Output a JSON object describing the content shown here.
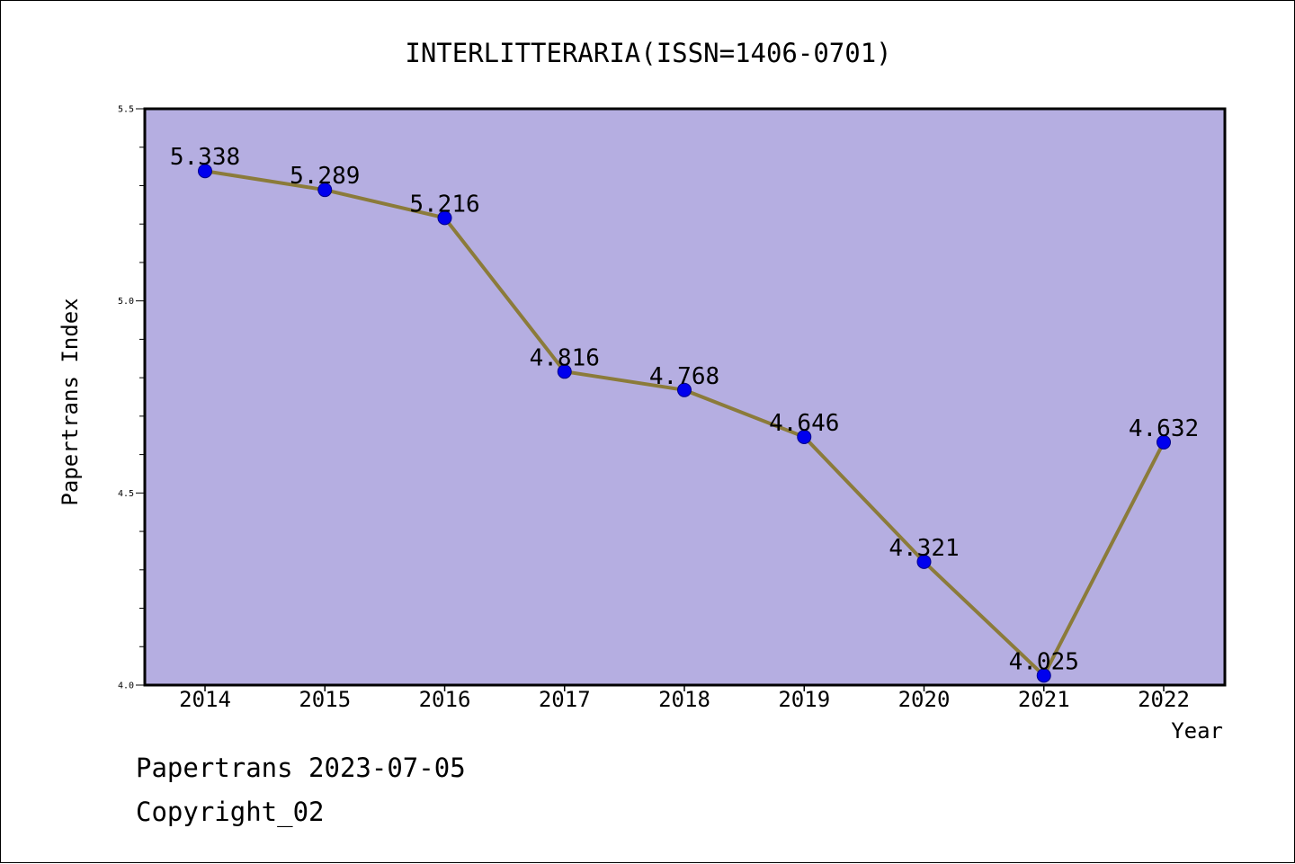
{
  "footer": {
    "date_line": "Papertrans 2023-07-05",
    "copyright": "Copyright_02"
  },
  "colors": {
    "plot_background": "#b5aee1",
    "line": "#8b7b3a",
    "marker": "#0000ee",
    "marker_edge": "#00008b"
  },
  "chart_data": {
    "type": "line",
    "title": "INTERLITTERARIA(ISSN=1406-0701)",
    "xlabel": "Year",
    "ylabel": "Papertrans Index",
    "x": [
      "2014",
      "2015",
      "2016",
      "2017",
      "2018",
      "2019",
      "2020",
      "2021",
      "2022"
    ],
    "series": [
      {
        "values": [
          5.338,
          5.289,
          5.216,
          4.816,
          4.768,
          4.646,
          4.321,
          4.025,
          4.632
        ],
        "data_labels": [
          "5.338",
          "5.289",
          "5.216",
          "4.816",
          "4.768",
          "4.646",
          "4.321",
          "4.025",
          "4.632"
        ]
      }
    ],
    "ylim": [
      4.0,
      5.5
    ],
    "yticks": [
      "4.0",
      "4.5",
      "5.0",
      "5.5"
    ],
    "grid": false,
    "legend": "none"
  }
}
